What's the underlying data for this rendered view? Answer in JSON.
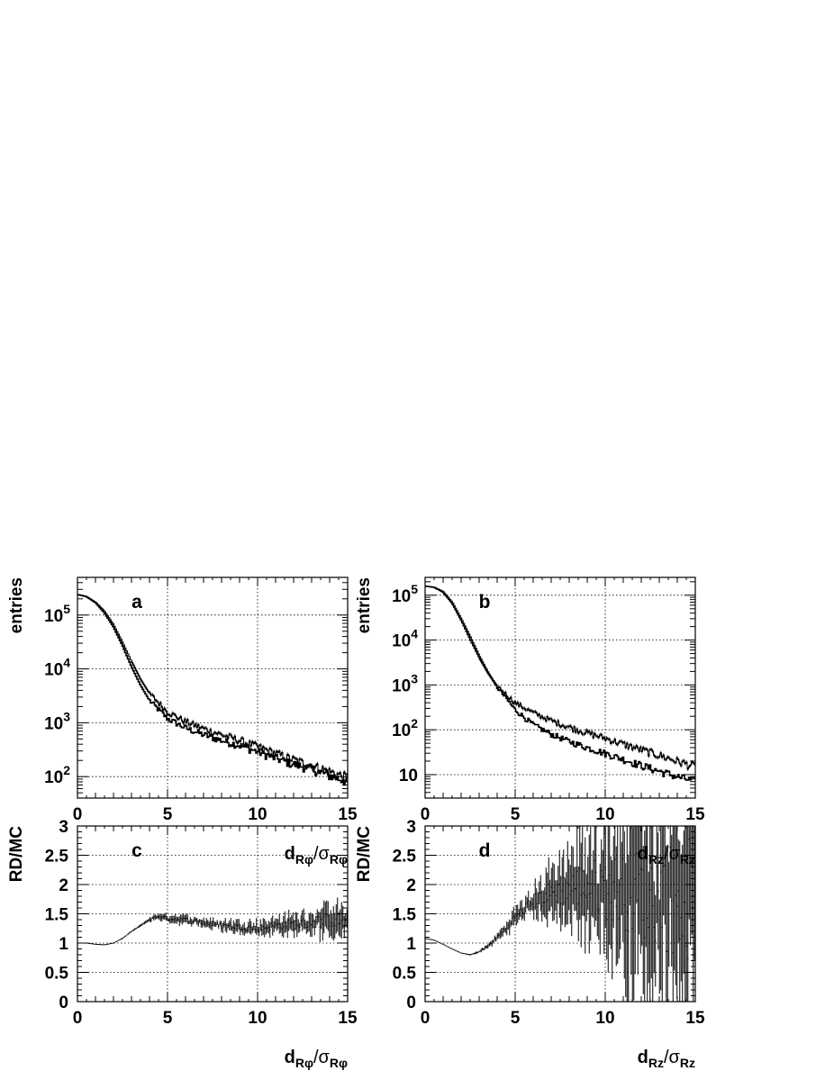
{
  "figure": {
    "x_ticks": [
      "0",
      "5",
      "10",
      "15"
    ]
  },
  "chart_data": [
    {
      "id": "a",
      "type": "line",
      "panel_label": "a",
      "ylabel": "entries",
      "xlabel_main": "d",
      "xlabel_sub": "Rφ",
      "xlabel_sep": "/σ",
      "xlabel_sub2": "Rφ",
      "xlim": [
        0,
        15
      ],
      "ylim": [
        40,
        500000
      ],
      "yscale": "log",
      "grid": true,
      "y_ticks": [
        {
          "base": "10",
          "exp": "2",
          "value": 100
        },
        {
          "base": "10",
          "exp": "3",
          "value": 1000
        },
        {
          "base": "10",
          "exp": "4",
          "value": 10000
        },
        {
          "base": "10",
          "exp": "5",
          "value": 100000
        }
      ],
      "x": [
        0,
        0.5,
        1,
        1.5,
        2,
        2.5,
        3,
        3.5,
        4,
        5,
        6,
        7,
        8,
        9,
        10,
        11,
        12,
        13,
        14,
        15
      ],
      "series": [
        {
          "values": [
            240000,
            220000,
            170000,
            110000,
            60000,
            27000,
            11000,
            5000,
            2600,
            1200,
            800,
            600,
            470,
            380,
            290,
            220,
            170,
            140,
            105,
            80
          ]
        },
        {
          "values": [
            240000,
            220000,
            175000,
            120000,
            68000,
            32000,
            14000,
            6500,
            3500,
            1600,
            1050,
            780,
            600,
            470,
            360,
            270,
            205,
            160,
            125,
            95
          ]
        }
      ]
    },
    {
      "id": "b",
      "type": "line",
      "panel_label": "b",
      "ylabel": "entries",
      "xlabel_main": "d",
      "xlabel_sub": "Rz",
      "xlabel_sep": "/σ",
      "xlabel_sub2": "Rz",
      "xlim": [
        0,
        15
      ],
      "ylim": [
        3,
        250000
      ],
      "yscale": "log",
      "grid": true,
      "y_ticks": [
        {
          "base": "10",
          "exp": "",
          "value": 10
        },
        {
          "base": "10",
          "exp": "2",
          "value": 100
        },
        {
          "base": "10",
          "exp": "3",
          "value": 1000
        },
        {
          "base": "10",
          "exp": "4",
          "value": 10000
        },
        {
          "base": "10",
          "exp": "5",
          "value": 100000
        }
      ],
      "x": [
        0,
        0.5,
        1,
        1.5,
        2,
        2.5,
        3,
        3.5,
        4,
        5,
        6,
        7,
        8,
        9,
        10,
        11,
        12,
        13,
        14,
        15
      ],
      "series": [
        {
          "values": [
            160000,
            150000,
            120000,
            70000,
            30000,
            12000,
            4500,
            1900,
            900,
            280,
            130,
            80,
            55,
            40,
            30,
            22,
            16,
            12,
            9,
            7
          ]
        },
        {
          "values": [
            160000,
            150000,
            115000,
            65000,
            27000,
            10000,
            4000,
            1800,
            950,
            400,
            240,
            160,
            115,
            85,
            65,
            48,
            36,
            27,
            20,
            15
          ]
        }
      ]
    },
    {
      "id": "c",
      "type": "line",
      "panel_label": "c",
      "ylabel": "RD/MC",
      "xlabel_main": "d",
      "xlabel_sub": "Rφ",
      "xlabel_sep": "/σ",
      "xlabel_sub2": "Rφ",
      "xlim": [
        0,
        15
      ],
      "ylim": [
        0,
        3
      ],
      "yscale": "linear",
      "grid": true,
      "y_ticks": [
        "0",
        "0.5",
        "1",
        "1.5",
        "2",
        "2.5",
        "3"
      ],
      "x": [
        0,
        0.5,
        1,
        1.5,
        2,
        2.5,
        3,
        3.5,
        4,
        4.5,
        5,
        6,
        7,
        8,
        9,
        10,
        11,
        12,
        13,
        14,
        15
      ],
      "y": [
        1.0,
        1.0,
        0.98,
        0.97,
        1.0,
        1.08,
        1.2,
        1.3,
        1.4,
        1.46,
        1.42,
        1.4,
        1.35,
        1.3,
        1.28,
        1.25,
        1.3,
        1.32,
        1.35,
        1.4,
        1.35
      ],
      "noise_from_x": 4,
      "errors": [
        0.0,
        0.0,
        0.0,
        0.0,
        0.0,
        0.01,
        0.01,
        0.02,
        0.03,
        0.04,
        0.05,
        0.06,
        0.07,
        0.08,
        0.09,
        0.1,
        0.12,
        0.14,
        0.17,
        0.2,
        0.22
      ]
    },
    {
      "id": "d",
      "type": "line",
      "panel_label": "d",
      "ylabel": "RD/MC",
      "xlabel_main": "d",
      "xlabel_sub": "Rz",
      "xlabel_sep": "/σ",
      "xlabel_sub2": "Rz",
      "xlim": [
        0,
        15
      ],
      "ylim": [
        0,
        3
      ],
      "yscale": "linear",
      "grid": true,
      "y_ticks": [
        "0",
        "0.5",
        "1",
        "1.5",
        "2",
        "2.5",
        "3"
      ],
      "x": [
        0,
        0.5,
        1,
        1.5,
        2,
        2.5,
        3,
        3.5,
        4,
        4.5,
        5,
        6,
        7,
        8,
        9,
        10,
        11,
        12,
        13,
        14,
        15
      ],
      "y": [
        1.08,
        1.05,
        0.98,
        0.9,
        0.83,
        0.8,
        0.85,
        0.95,
        1.1,
        1.25,
        1.45,
        1.7,
        1.85,
        1.95,
        2.0,
        1.95,
        1.9,
        1.85,
        1.8,
        1.75,
        1.7
      ],
      "noise_from_x": 3,
      "errors": [
        0.0,
        0.0,
        0.0,
        0.0,
        0.0,
        0.01,
        0.02,
        0.03,
        0.05,
        0.08,
        0.12,
        0.2,
        0.35,
        0.5,
        0.7,
        0.9,
        1.1,
        1.3,
        1.5,
        1.7,
        1.9
      ]
    }
  ]
}
